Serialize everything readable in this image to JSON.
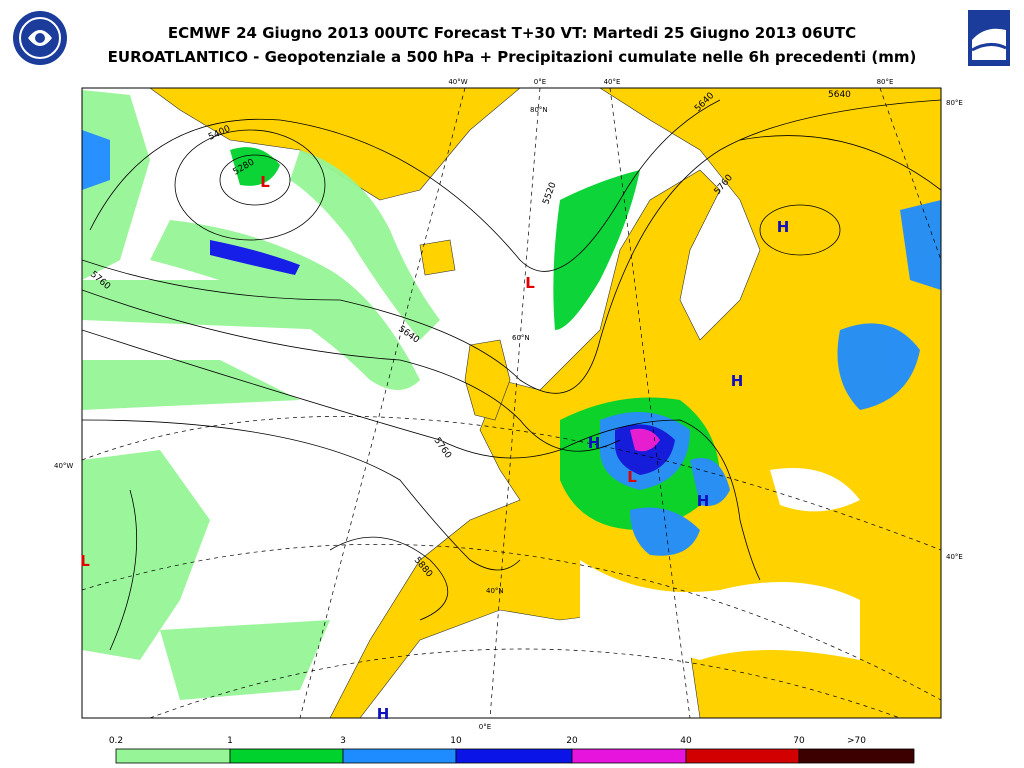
{
  "header": {
    "title": "ECMWF 24 Giugno 2013 00UTC Forecast T+30 VT: Martedi 25 Giugno 2013 06UTC",
    "subtitle": "EUROATLANTICO - Geopotenziale a 500 hPa + Precipitazioni cumulate nelle 6h precedenti (mm)"
  },
  "map": {
    "grid_labels": [
      "40°W",
      "0°E",
      "40°E",
      "80°E",
      "80°E",
      "80°N",
      "60°N",
      "40°N",
      "40°W",
      "40°E",
      "0°E"
    ],
    "contour_labels": [
      "5400",
      "5280",
      "5520",
      "5640",
      "5640",
      "5760",
      "5640",
      "5760",
      "5760",
      "5880"
    ],
    "centers": [
      {
        "label": "L",
        "color": "#e00000"
      },
      {
        "label": "L",
        "color": "#e00000"
      },
      {
        "label": "L",
        "color": "#e00000"
      },
      {
        "label": "L",
        "color": "#e00000"
      },
      {
        "label": "H",
        "color": "#1010c0"
      },
      {
        "label": "H",
        "color": "#1010c0"
      },
      {
        "label": "H",
        "color": "#1010c0"
      },
      {
        "label": "H",
        "color": "#1010c0"
      },
      {
        "label": "H",
        "color": "#1010c0"
      }
    ]
  },
  "legend": {
    "labels": [
      "0.2",
      "1",
      "3",
      "10",
      "20",
      "40",
      "70",
      ">70"
    ],
    "colors": [
      "#96f596",
      "#00d22d",
      "#1e8cff",
      "#0a14e6",
      "#e614dc",
      "#d20000",
      "#3c0000"
    ]
  }
}
